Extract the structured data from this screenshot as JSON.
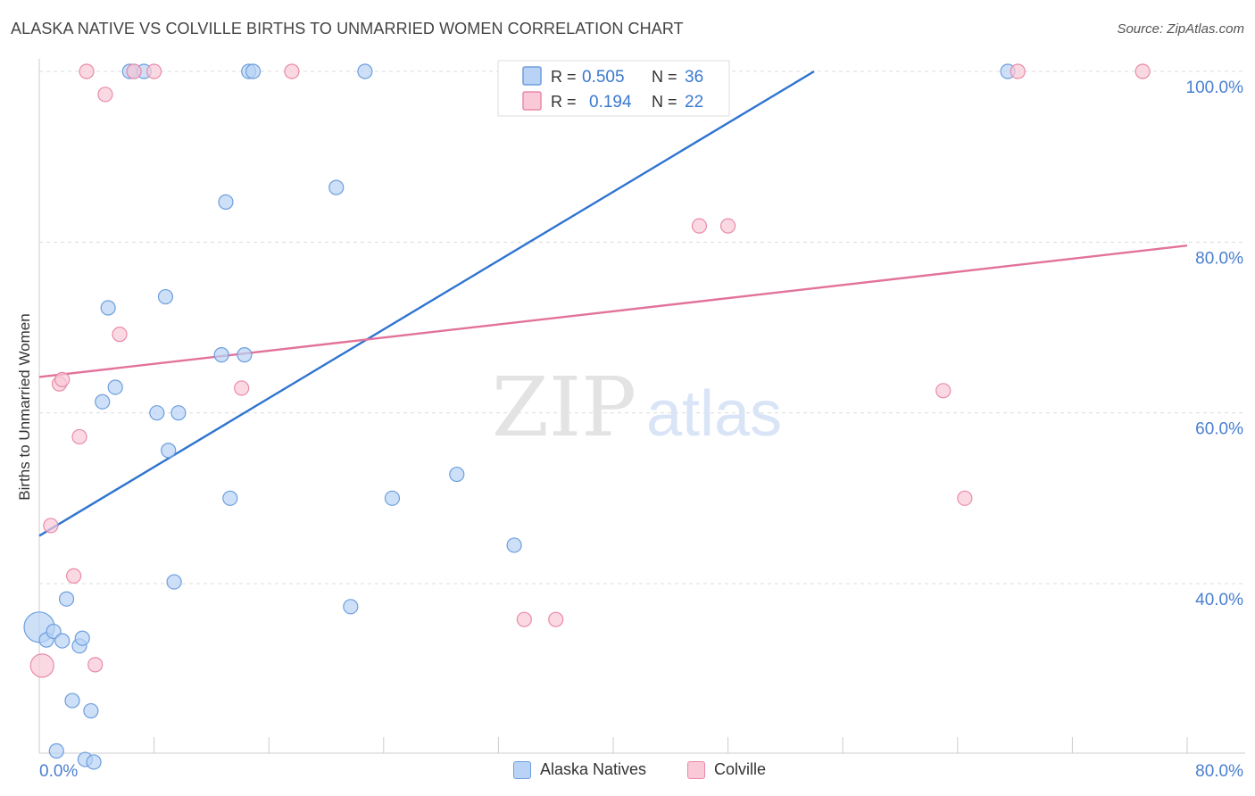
{
  "header": {
    "title": "ALASKA NATIVE VS COLVILLE BIRTHS TO UNMARRIED WOMEN CORRELATION CHART",
    "source": "Source: ZipAtlas.com"
  },
  "watermark": {
    "zip": "ZIP",
    "atlas": "atlas"
  },
  "colors": {
    "blue_fill": "#b8d3f5",
    "blue_stroke": "#6d9ede",
    "blue_line": "#2f74d0",
    "pink_fill": "#f9c9d7",
    "pink_stroke": "#e98aa9",
    "pink_line": "#e2729b",
    "axis_text": "#4a7fd0"
  },
  "legend_stats": [
    {
      "r_label": "R =",
      "r_value": "0.505",
      "n_label": "N =",
      "n_value": "36"
    },
    {
      "r_label": "R =",
      "r_value": "0.194",
      "n_label": "N =",
      "n_value": "22"
    }
  ],
  "legend_bottom": [
    {
      "label": "Alaska Natives"
    },
    {
      "label": "Colville"
    }
  ],
  "chart_data": {
    "type": "scatter",
    "title": "ALASKA NATIVE VS COLVILLE BIRTHS TO UNMARRIED WOMEN CORRELATION CHART",
    "xlabel": "",
    "ylabel": "Births to Unmarried Women",
    "xlim": [
      0,
      80
    ],
    "ylim": [
      18,
      101.5
    ],
    "x_tick_labels": [
      "0.0%",
      "80.0%"
    ],
    "y_tick_labels": [
      "40.0%",
      "60.0%",
      "80.0%",
      "100.0%"
    ],
    "y_ticks": [
      40,
      60,
      80,
      100
    ],
    "grid": true,
    "legend_position": "top-center",
    "series": [
      {
        "name": "Alaska Natives",
        "points": [
          [
            0,
            34.9
          ],
          [
            0.5,
            33.4
          ],
          [
            1,
            34.4
          ],
          [
            1.2,
            20.4
          ],
          [
            1.6,
            33.3
          ],
          [
            1.9,
            38.2
          ],
          [
            2.3,
            26.3
          ],
          [
            2.8,
            32.7
          ],
          [
            3.0,
            33.6
          ],
          [
            3.2,
            19.4
          ],
          [
            3.6,
            25.1
          ],
          [
            3.8,
            19.1
          ],
          [
            4.4,
            61.3
          ],
          [
            4.8,
            72.3
          ],
          [
            5.3,
            63.0
          ],
          [
            6.3,
            100
          ],
          [
            6.6,
            100
          ],
          [
            7.3,
            100
          ],
          [
            8.2,
            60.0
          ],
          [
            8.8,
            73.6
          ],
          [
            9.0,
            55.6
          ],
          [
            9.4,
            40.2
          ],
          [
            9.7,
            60.0
          ],
          [
            12.7,
            66.8
          ],
          [
            13.0,
            84.7
          ],
          [
            13.3,
            50.0
          ],
          [
            14.3,
            66.8
          ],
          [
            14.6,
            100
          ],
          [
            14.9,
            100
          ],
          [
            20.7,
            86.4
          ],
          [
            21.7,
            37.3
          ],
          [
            22.7,
            100
          ],
          [
            24.6,
            50.0
          ],
          [
            29.1,
            52.8
          ],
          [
            33.1,
            44.5
          ],
          [
            67.5,
            100
          ]
        ],
        "trend": {
          "x": [
            0,
            54
          ],
          "y": [
            45.6,
            100
          ]
        }
      },
      {
        "name": "Colville",
        "points": [
          [
            0.2,
            30.4
          ],
          [
            0.8,
            46.8
          ],
          [
            1.4,
            63.4
          ],
          [
            1.6,
            63.9
          ],
          [
            2.4,
            40.9
          ],
          [
            2.8,
            57.2
          ],
          [
            3.3,
            100
          ],
          [
            3.9,
            30.5
          ],
          [
            4.6,
            97.3
          ],
          [
            5.6,
            69.2
          ],
          [
            6.6,
            100
          ],
          [
            8.0,
            100
          ],
          [
            14.1,
            62.9
          ],
          [
            17.6,
            100
          ],
          [
            33.8,
            35.8
          ],
          [
            36.0,
            35.8
          ],
          [
            46.0,
            81.9
          ],
          [
            48.0,
            81.9
          ],
          [
            63.0,
            62.6
          ],
          [
            64.5,
            50.0
          ],
          [
            68.2,
            100
          ],
          [
            76.9,
            100
          ]
        ],
        "trend": {
          "x": [
            0,
            80
          ],
          "y": [
            64.2,
            79.6
          ]
        }
      }
    ]
  }
}
